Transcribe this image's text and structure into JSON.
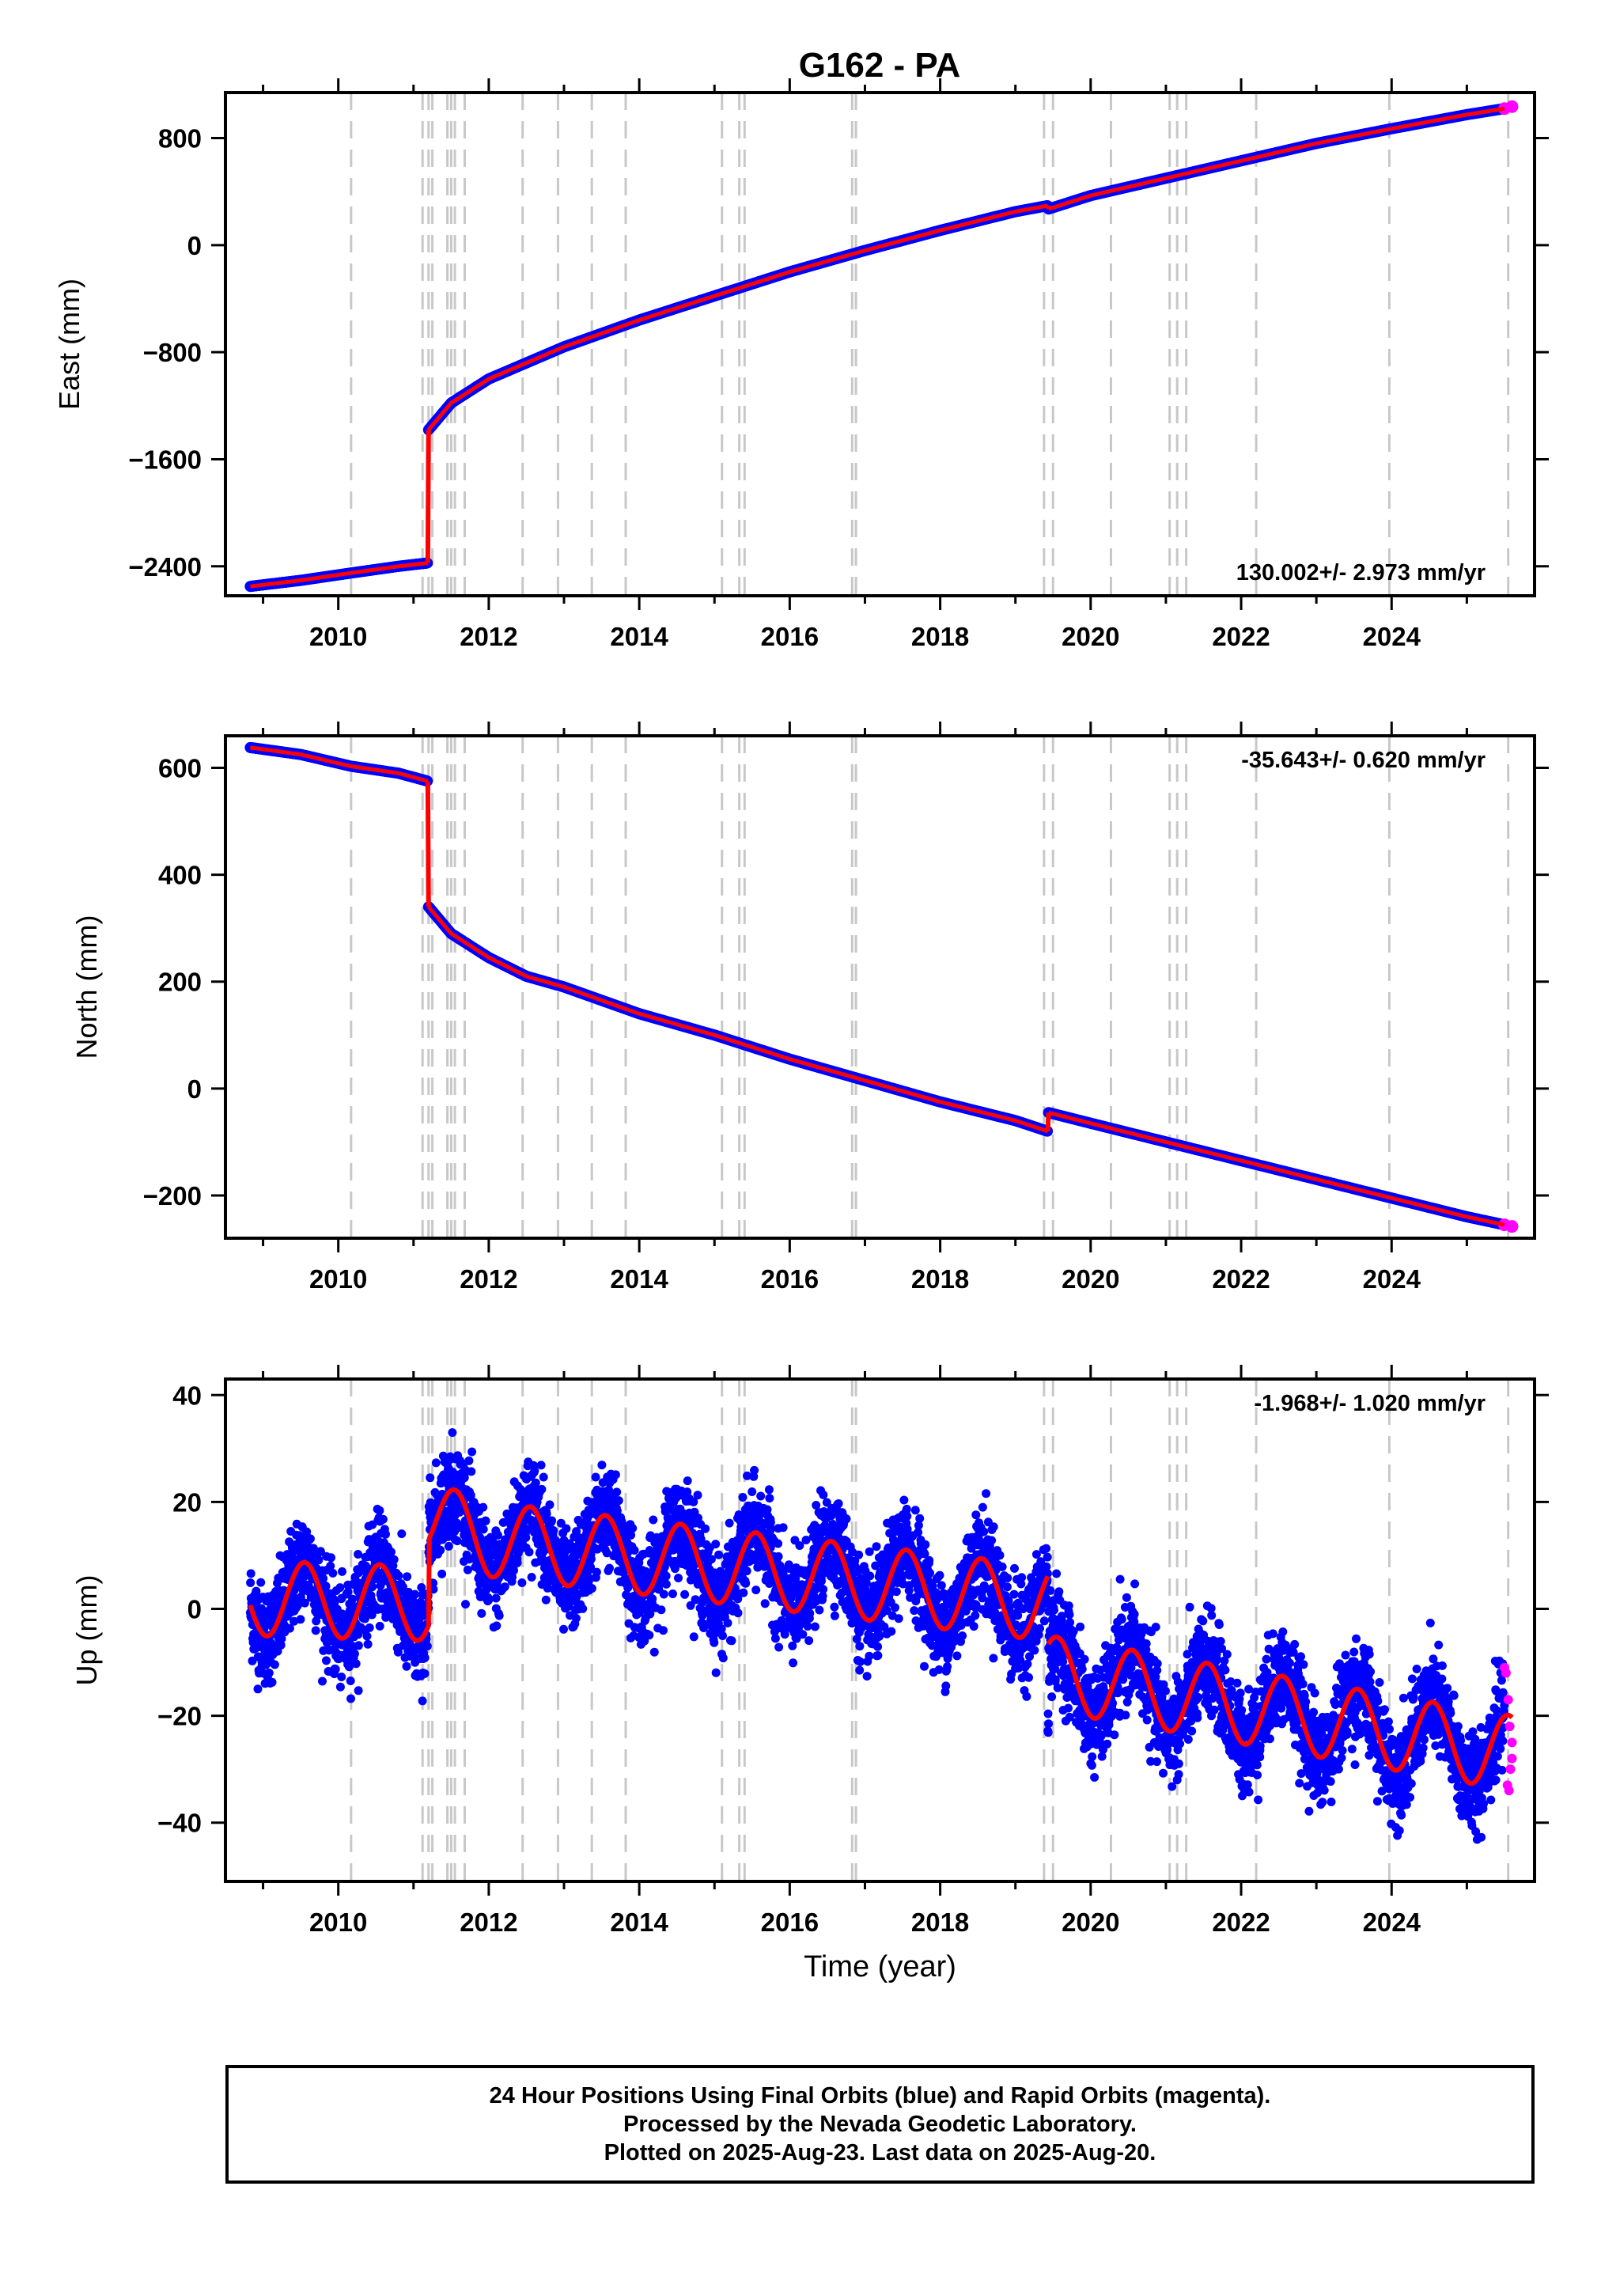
{
  "title": "G162 - PA",
  "colors": {
    "final_orbits": "#0000ff",
    "rapid_orbits": "#ff00ff",
    "model_fit": "#ff0000",
    "event_lines": "#c8c8c8",
    "axes": "#000000"
  },
  "footer": {
    "line1": "24 Hour Positions Using Final Orbits (blue) and Rapid Orbits (magenta).",
    "line2": "Processed by the Nevada Geodetic Laboratory.",
    "line3": "Plotted on 2025-Aug-23. Last data on 2025-Aug-20."
  },
  "chart_data": [
    {
      "type": "scatter",
      "panel": "east",
      "title": "G162 - PA",
      "xlabel": "",
      "ylabel": "East (mm)",
      "xlim": [
        2008.5,
        2025.9
      ],
      "ylim": [
        -2620,
        1140
      ],
      "xticks": [
        2010,
        2012,
        2014,
        2016,
        2018,
        2020,
        2022,
        2024
      ],
      "yticks": [
        -2400,
        -1600,
        -800,
        0,
        800
      ],
      "ytick_labels": [
        "−2400",
        "−1600",
        "−800",
        "0",
        "800"
      ],
      "rate_text": "130.002+/- 2.973 mm/yr",
      "rate_position": "bottom-right",
      "event_years": [
        2010.17,
        2011.12,
        2011.2,
        2011.25,
        2011.45,
        2011.5,
        2011.55,
        2011.68,
        2012.45,
        2012.92,
        2013.37,
        2013.82,
        2015.1,
        2015.33,
        2015.4,
        2016.83,
        2016.88,
        2019.38,
        2019.5,
        2020.27,
        2021.05,
        2021.15,
        2021.27,
        2022.2,
        2023.97,
        2025.55
      ],
      "series": [
        {
          "name": "Final Orbits",
          "color": "#0000ff",
          "x": [
            2008.83,
            2009.5,
            2010.17,
            2010.8,
            2011.19,
            2011.2,
            2011.5,
            2012.0,
            2013.0,
            2014.0,
            2015.0,
            2016.0,
            2017.0,
            2018.0,
            2019.0,
            2019.43,
            2019.44,
            2020.0,
            2021.0,
            2022.0,
            2023.0,
            2024.0,
            2025.0,
            2025.5
          ],
          "y": [
            -2550,
            -2505,
            -2450,
            -2400,
            -2375,
            -1380,
            -1180,
            -1000,
            -760,
            -560,
            -380,
            -200,
            -40,
            110,
            250,
            295,
            270,
            370,
            500,
            630,
            760,
            870,
            975,
            1020
          ]
        },
        {
          "name": "Rapid Orbits",
          "color": "#ff00ff",
          "x": [
            2025.5,
            2025.6
          ],
          "y": [
            1020,
            1035
          ]
        }
      ]
    },
    {
      "type": "scatter",
      "panel": "north",
      "xlabel": "",
      "ylabel": "North (mm)",
      "xlim": [
        2008.5,
        2025.9
      ],
      "ylim": [
        -280,
        660
      ],
      "xticks": [
        2010,
        2012,
        2014,
        2016,
        2018,
        2020,
        2022,
        2024
      ],
      "yticks": [
        -200,
        0,
        200,
        400,
        600
      ],
      "ytick_labels": [
        "−200",
        "0",
        "200",
        "400",
        "600"
      ],
      "rate_text": "-35.643+/- 0.620 mm/yr",
      "rate_position": "top-right",
      "series": [
        {
          "name": "Final Orbits",
          "color": "#0000ff",
          "x": [
            2008.83,
            2009.5,
            2010.17,
            2010.8,
            2011.19,
            2011.2,
            2011.5,
            2012.0,
            2012.5,
            2013.0,
            2014.0,
            2015.0,
            2016.0,
            2017.0,
            2018.0,
            2019.0,
            2019.43,
            2019.44,
            2020.0,
            2021.0,
            2022.0,
            2023.0,
            2024.0,
            2025.0,
            2025.5
          ],
          "y": [
            638,
            625,
            603,
            590,
            575,
            340,
            290,
            245,
            210,
            190,
            140,
            100,
            55,
            15,
            -25,
            -60,
            -80,
            -45,
            -65,
            -100,
            -135,
            -170,
            -205,
            -240,
            -255
          ]
        },
        {
          "name": "Rapid Orbits",
          "color": "#ff00ff",
          "x": [
            2025.5,
            2025.6
          ],
          "y": [
            -255,
            -258
          ]
        }
      ]
    },
    {
      "type": "scatter",
      "panel": "up",
      "xlabel": "Time (year)",
      "ylabel": "Up (mm)",
      "xlim": [
        2008.5,
        2025.9
      ],
      "ylim": [
        -51,
        43
      ],
      "xticks": [
        2010,
        2012,
        2014,
        2016,
        2018,
        2020,
        2022,
        2024
      ],
      "yticks": [
        -40,
        -20,
        0,
        20,
        40
      ],
      "ytick_labels": [
        "−40",
        "−20",
        "0",
        "20",
        "40"
      ],
      "rate_text": "-1.968+/- 1.020 mm/yr",
      "rate_position": "top-right",
      "seasonal_amplitude_mm": 7,
      "noise_mm": 4.5,
      "trend_segments": [
        {
          "x": [
            2008.83,
            2011.2
          ],
          "y": [
            2,
            1
          ]
        },
        {
          "x": [
            2011.2,
            2012.0
          ],
          "y": [
            17,
            13
          ]
        },
        {
          "x": [
            2012.0,
            2019.43
          ],
          "y": [
            13,
            1
          ]
        },
        {
          "x": [
            2019.44,
            2025.6
          ],
          "y": [
            -12,
            -27
          ]
        }
      ],
      "series": [
        {
          "name": "Final Orbits",
          "color": "#0000ff"
        },
        {
          "name": "Rapid Orbits",
          "color": "#ff00ff",
          "x": [
            2025.5,
            2025.52,
            2025.55,
            2025.57,
            2025.6,
            2025.6,
            2025.58,
            2025.56,
            2025.54
          ],
          "y": [
            -11,
            -12,
            -17,
            -22,
            -25,
            -28,
            -30,
            -34,
            -33
          ]
        }
      ]
    }
  ]
}
